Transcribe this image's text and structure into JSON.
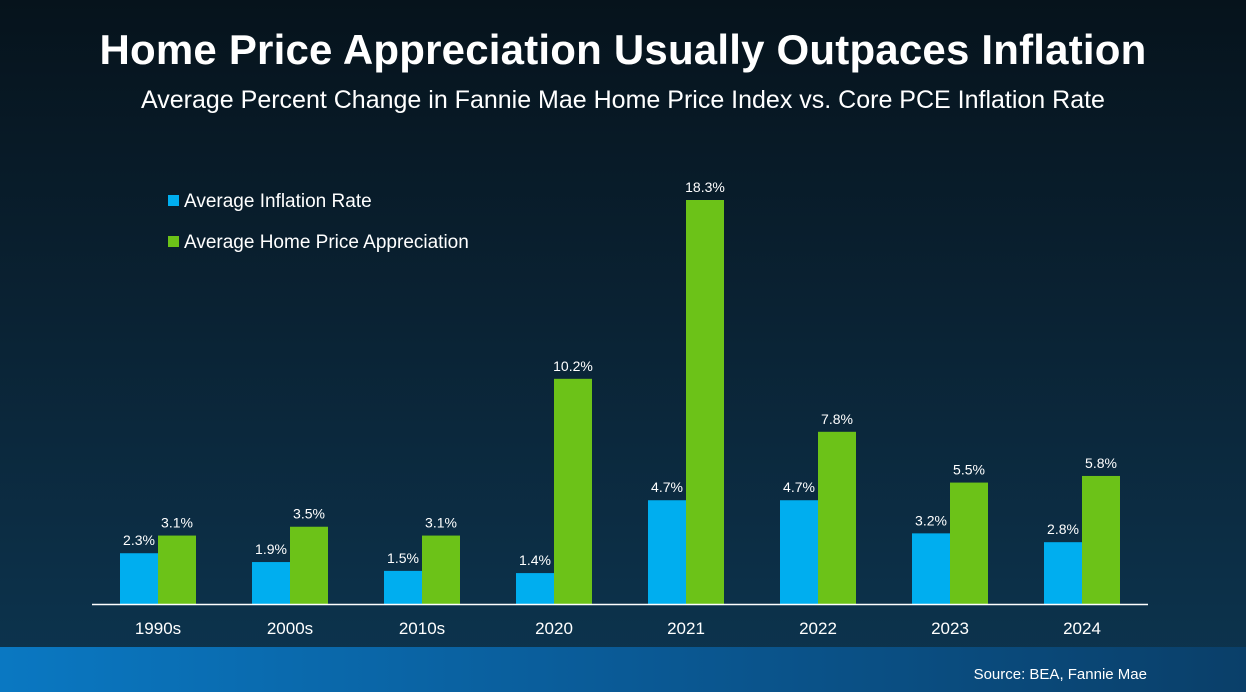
{
  "header": {
    "title": "Home Price Appreciation Usually Outpaces Inflation",
    "subtitle": "Average Percent Change in Fannie Mae Home Price Index vs. Core PCE Inflation Rate"
  },
  "footer": {
    "source": "Source: BEA, Fannie Mae"
  },
  "colors": {
    "inflation": "#00aeef",
    "home_price": "#6cc218"
  },
  "chart_data": {
    "type": "bar",
    "categories": [
      "1990s",
      "2000s",
      "2010s",
      "2020",
      "2021",
      "2022",
      "2023",
      "2024"
    ],
    "series": [
      {
        "name": "Average Inflation Rate",
        "values": [
          2.3,
          1.9,
          1.5,
          1.4,
          4.7,
          4.7,
          3.2,
          2.8
        ],
        "labels": [
          "2.3%",
          "1.9%",
          "1.5%",
          "1.4%",
          "4.7%",
          "4.7%",
          "3.2%",
          "2.8%"
        ]
      },
      {
        "name": "Average Home Price Appreciation",
        "values": [
          3.1,
          3.5,
          3.1,
          10.2,
          18.3,
          7.8,
          5.5,
          5.8
        ],
        "labels": [
          "3.1%",
          "3.5%",
          "3.1%",
          "10.2%",
          "18.3%",
          "7.8%",
          "5.5%",
          "5.8%"
        ]
      }
    ],
    "ylim": [
      0,
      18.3
    ],
    "grid": false,
    "legend": "top-left"
  }
}
